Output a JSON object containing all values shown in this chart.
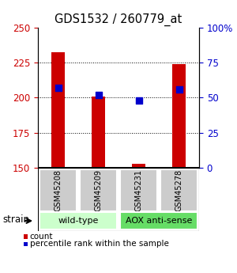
{
  "title": "GDS1532 / 260779_at",
  "samples": [
    "GSM45208",
    "GSM45209",
    "GSM45231",
    "GSM45278"
  ],
  "count_values": [
    232,
    201,
    153,
    224
  ],
  "percentile_values": [
    57,
    52,
    48,
    56
  ],
  "y_min": 150,
  "y_max": 250,
  "y_ticks": [
    150,
    175,
    200,
    225,
    250
  ],
  "y2_ticks": [
    0,
    25,
    50,
    75,
    100
  ],
  "bar_color": "#cc0000",
  "dot_color": "#0000cc",
  "groups": [
    {
      "label": "wild-type",
      "samples": [
        0,
        1
      ],
      "color": "#ccffcc"
    },
    {
      "label": "AOX anti-sense",
      "samples": [
        2,
        3
      ],
      "color": "#66dd66"
    }
  ],
  "strain_label": "strain",
  "legend_count": "count",
  "legend_percentile": "percentile rank within the sample",
  "bar_width": 0.35,
  "dot_size": 40,
  "label_box_color": "#cccccc"
}
